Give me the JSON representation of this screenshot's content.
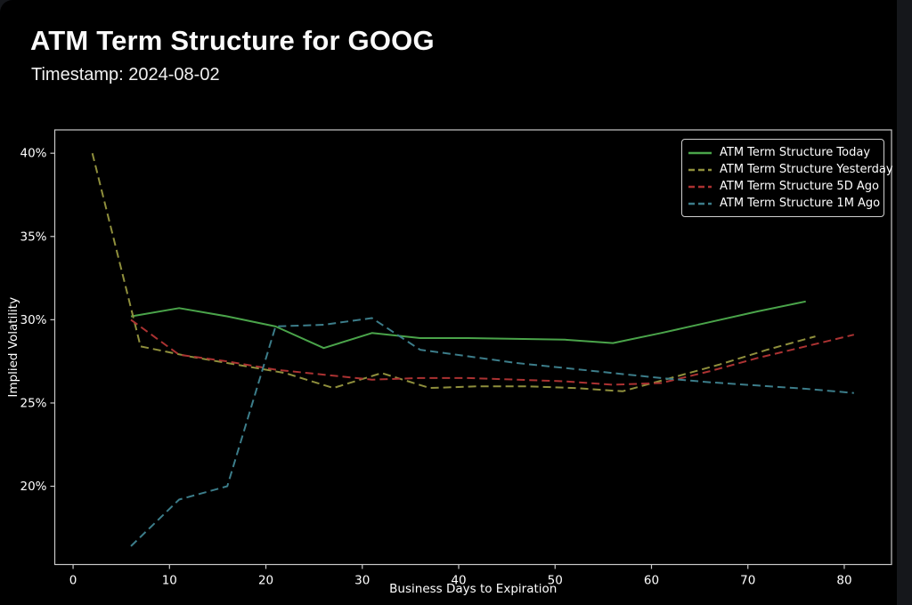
{
  "header": {
    "title": "ATM Term Structure for GOOG",
    "timestamp": "Timestamp: 2024-08-02"
  },
  "page": {
    "background": "#15171b",
    "panel_background": "#000000",
    "axis_color": "#c9c9c9",
    "text_color": "#ffffff"
  },
  "chart_data": {
    "type": "line",
    "title": "ATM Term Structure for GOOG",
    "subtitle": "Timestamp: 2024-08-02",
    "xlabel": "Business Days to Expiration",
    "ylabel": "Implied Volatility",
    "xlim": [
      -1.9,
      84.9
    ],
    "ylim": [
      15.3,
      41.4
    ],
    "x_ticks": [
      0,
      10,
      20,
      30,
      40,
      50,
      60,
      70,
      80
    ],
    "y_ticks": [
      20,
      25,
      30,
      35,
      40
    ],
    "y_tick_labels": [
      "20%",
      "25%",
      "30%",
      "35%",
      "40%"
    ],
    "grid": false,
    "legend_position": "upper right",
    "series": [
      {
        "name": "ATM Term Structure Today",
        "color": "#4aa44a",
        "style": "solid",
        "x": [
          6,
          11,
          16,
          21,
          26,
          31,
          36,
          41,
          46,
          51,
          56,
          61,
          66,
          71,
          76
        ],
        "y": [
          30.2,
          30.7,
          30.2,
          29.6,
          28.3,
          29.2,
          28.9,
          28.9,
          28.85,
          28.8,
          28.6,
          29.2,
          29.85,
          30.5,
          31.1
        ]
      },
      {
        "name": "ATM Term Structure Yesterday",
        "color": "#8f8f3c",
        "style": "dashed",
        "x": [
          2,
          7,
          12,
          17,
          22,
          27,
          32,
          37,
          42,
          47,
          52,
          57,
          62,
          67,
          72,
          77
        ],
        "y": [
          40.0,
          28.4,
          27.8,
          27.3,
          26.8,
          25.9,
          26.8,
          25.9,
          26.0,
          26.0,
          25.9,
          25.7,
          26.5,
          27.3,
          28.2,
          29.0
        ]
      },
      {
        "name": "ATM Term Structure 5D Ago",
        "color": "#ab3232",
        "style": "dashed",
        "x": [
          6,
          11,
          16,
          21,
          26,
          31,
          36,
          41,
          46,
          51,
          56,
          61,
          66,
          71,
          76,
          81
        ],
        "y": [
          30.0,
          27.9,
          27.5,
          27.0,
          26.7,
          26.4,
          26.5,
          26.5,
          26.4,
          26.3,
          26.1,
          26.2,
          26.9,
          27.7,
          28.4,
          29.1
        ]
      },
      {
        "name": "ATM Term Structure 1M Ago",
        "color": "#3c7d8a",
        "style": "dashed",
        "x": [
          6,
          11,
          16,
          21,
          26,
          31,
          36,
          41,
          46,
          51,
          56,
          61,
          66,
          71,
          76,
          81
        ],
        "y": [
          16.4,
          19.2,
          20.0,
          29.6,
          29.7,
          30.1,
          28.2,
          27.8,
          27.4,
          27.1,
          26.8,
          26.5,
          26.25,
          26.05,
          25.85,
          25.6
        ]
      }
    ]
  }
}
